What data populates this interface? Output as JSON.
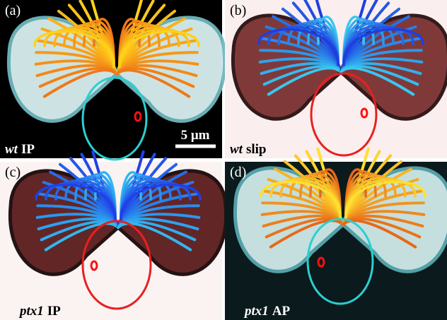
{
  "panels": [
    {
      "label": "(a)",
      "genotype": "wt",
      "condition": "IP"
    },
    {
      "label": "(b)",
      "genotype": "wt",
      "condition": "slip"
    },
    {
      "label": "(c)",
      "genotype": "ptx1",
      "condition": "IP"
    },
    {
      "label": "(d)",
      "genotype": "ptx1",
      "condition": "AP"
    }
  ],
  "scale_bar": "5 μm"
}
